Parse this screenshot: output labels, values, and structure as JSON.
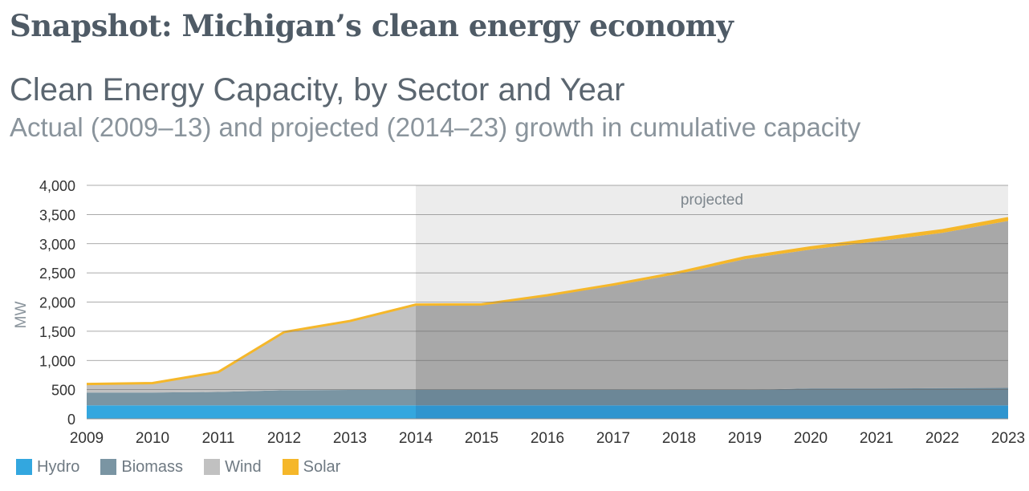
{
  "heading": "Snapshot: Michigan’s clean energy economy",
  "chart_data": {
    "type": "area",
    "stacked": true,
    "title": "Clean Energy Capacity, by Sector and Year",
    "subtitle": "Actual (2009–13) and projected (2014–23) growth in cumulative capacity",
    "ylabel": "MW",
    "xlabel": "",
    "ylim": [
      0,
      4000
    ],
    "yticks": [
      0,
      500,
      1000,
      1500,
      2000,
      2500,
      3000,
      3500,
      4000
    ],
    "ytick_labels": [
      "0",
      "500",
      "1,000",
      "1,500",
      "2,000",
      "2,500",
      "3,000",
      "3,500",
      "4,000"
    ],
    "x": [
      2009,
      2010,
      2011,
      2012,
      2013,
      2014,
      2015,
      2016,
      2017,
      2018,
      2019,
      2020,
      2021,
      2022,
      2023
    ],
    "grid": "horizontal",
    "legend_position": "bottom-left",
    "projected_region": {
      "from": 2014,
      "to": 2023,
      "label": "projected"
    },
    "series": [
      {
        "name": "Hydro",
        "color": "#33a7df",
        "projected_color": "#2f95cf",
        "values": [
          230,
          230,
          230,
          230,
          230,
          230,
          230,
          230,
          230,
          230,
          230,
          230,
          230,
          230,
          230
        ]
      },
      {
        "name": "Biomass",
        "color": "#7a95a3",
        "projected_color": "#6c8797",
        "values": [
          220,
          220,
          230,
          260,
          265,
          270,
          270,
          270,
          270,
          265,
          265,
          290,
          290,
          295,
          300
        ]
      },
      {
        "name": "Wind",
        "color": "#c1c1c1",
        "projected_color": "#a8a8a8",
        "values": [
          155,
          170,
          350,
          1000,
          1180,
          1450,
          1450,
          1600,
          1780,
          1990,
          2240,
          2380,
          2520,
          2660,
          2860
        ]
      },
      {
        "name": "Solar",
        "color": "#f5b72a",
        "projected_color": "#f5b72a",
        "values": [
          5,
          5,
          5,
          10,
          15,
          20,
          25,
          30,
          35,
          40,
          45,
          50,
          55,
          60,
          60
        ]
      }
    ]
  }
}
